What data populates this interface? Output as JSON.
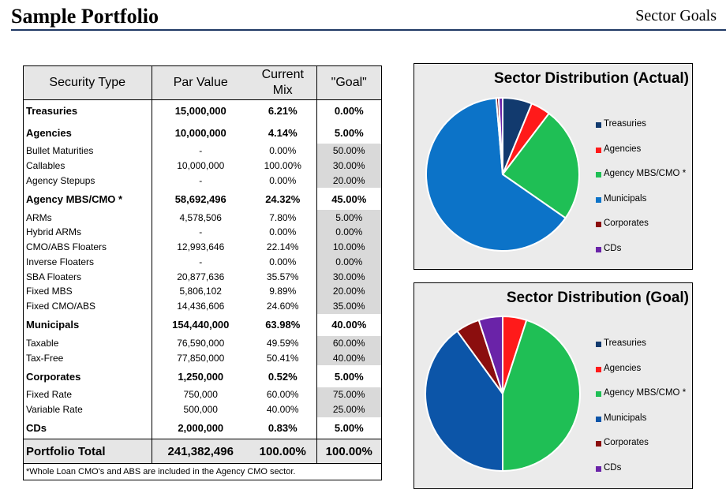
{
  "header": {
    "title": "Sample Portfolio",
    "section": "Sector Goals"
  },
  "table": {
    "headers": [
      "Security Type",
      "Par Value",
      "Current Mix",
      "\"Goal\""
    ],
    "rows": [
      {
        "kind": "cat",
        "name": "Treasuries",
        "par": "15,000,000",
        "mix": "6.21%",
        "goal": "0.00%"
      },
      {
        "kind": "cat",
        "name": "Agencies",
        "par": "10,000,000",
        "mix": "4.14%",
        "goal": "5.00%"
      },
      {
        "kind": "sub",
        "name": "Bullet Maturities",
        "par": "-",
        "mix": "0.00%",
        "goal": "50.00%"
      },
      {
        "kind": "sub",
        "name": "Callables",
        "par": "10,000,000",
        "mix": "100.00%",
        "goal": "30.00%"
      },
      {
        "kind": "sub",
        "name": "Agency Stepups",
        "par": "-",
        "mix": "0.00%",
        "goal": "20.00%"
      },
      {
        "kind": "cat",
        "name": "Agency MBS/CMO *",
        "par": "58,692,496",
        "mix": "24.32%",
        "goal": "45.00%"
      },
      {
        "kind": "sub",
        "name": "ARMs",
        "par": "4,578,506",
        "mix": "7.80%",
        "goal": "5.00%"
      },
      {
        "kind": "sub",
        "name": "Hybrid ARMs",
        "par": "-",
        "mix": "0.00%",
        "goal": "0.00%"
      },
      {
        "kind": "sub",
        "name": "CMO/ABS Floaters",
        "par": "12,993,646",
        "mix": "22.14%",
        "goal": "10.00%"
      },
      {
        "kind": "sub",
        "name": "Inverse Floaters",
        "par": "-",
        "mix": "0.00%",
        "goal": "0.00%"
      },
      {
        "kind": "sub",
        "name": "SBA Floaters",
        "par": "20,877,636",
        "mix": "35.57%",
        "goal": "30.00%"
      },
      {
        "kind": "sub",
        "name": "Fixed MBS",
        "par": "5,806,102",
        "mix": "9.89%",
        "goal": "20.00%"
      },
      {
        "kind": "sub",
        "name": "Fixed CMO/ABS",
        "par": "14,436,606",
        "mix": "24.60%",
        "goal": "35.00%"
      },
      {
        "kind": "cat",
        "name": "Municipals",
        "par": "154,440,000",
        "mix": "63.98%",
        "goal": "40.00%"
      },
      {
        "kind": "sub",
        "name": "Taxable",
        "par": "76,590,000",
        "mix": "49.59%",
        "goal": "60.00%"
      },
      {
        "kind": "sub",
        "name": "Tax-Free",
        "par": "77,850,000",
        "mix": "50.41%",
        "goal": "40.00%"
      },
      {
        "kind": "cat",
        "name": "Corporates",
        "par": "1,250,000",
        "mix": "0.52%",
        "goal": "5.00%"
      },
      {
        "kind": "sub",
        "name": "Fixed Rate",
        "par": "750,000",
        "mix": "60.00%",
        "goal": "75.00%"
      },
      {
        "kind": "sub",
        "name": "Variable Rate",
        "par": "500,000",
        "mix": "40.00%",
        "goal": "25.00%"
      },
      {
        "kind": "cat",
        "name": "CDs",
        "par": "2,000,000",
        "mix": "0.83%",
        "goal": "5.00%"
      }
    ],
    "total": {
      "name": "Portfolio Total",
      "par": "241,382,496",
      "mix": "100.00%",
      "goal": "100.00%"
    },
    "footnote": "*Whole Loan CMO's and ABS are included in the Agency CMO sector."
  },
  "chart_data": [
    {
      "type": "pie",
      "title": "Sector Distribution (Actual)",
      "categories": [
        "Treasuries",
        "Agencies",
        "Agency MBS/CMO *",
        "Municipals",
        "Corporates",
        "CDs"
      ],
      "values": [
        6.21,
        4.14,
        24.32,
        63.98,
        0.52,
        0.83
      ],
      "colors": [
        "#123a6e",
        "#ff1a1a",
        "#1fbf55",
        "#0c73c8",
        "#8b0e0e",
        "#6a23a8"
      ],
      "legend_position": "right"
    },
    {
      "type": "pie",
      "title": "Sector Distribution (Goal)",
      "categories": [
        "Treasuries",
        "Agencies",
        "Agency MBS/CMO *",
        "Municipals",
        "Corporates",
        "CDs"
      ],
      "values": [
        0,
        5,
        45,
        40,
        5,
        5
      ],
      "colors": [
        "#123a6e",
        "#ff1a1a",
        "#1fbf55",
        "#0c55a8",
        "#8b0e0e",
        "#6a23a8"
      ],
      "legend_position": "right"
    }
  ]
}
